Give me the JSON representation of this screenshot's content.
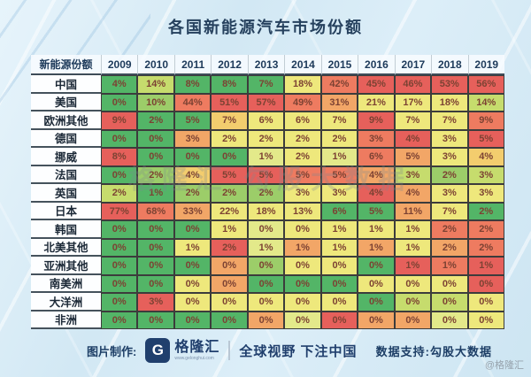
{
  "title": "各国新能源汽车市场份额",
  "watermark": "格隆汇 勾股大数据",
  "palette": {
    "g": "#53b567",
    "lg": "#9ccd69",
    "yg": "#c6dc6d",
    "ly": "#e3e98a",
    "y": "#eee87c",
    "gd": "#f3cd6e",
    "o": "#f2a667",
    "s": "#ee7b60",
    "r": "#e6605b"
  },
  "chart_data": {
    "type": "heatmap",
    "title": "各国新能源汽车市场份额",
    "header_label": "新能源份额",
    "columns": [
      "2009",
      "2010",
      "2011",
      "2012",
      "2013",
      "2014",
      "2015",
      "2016",
      "2017",
      "2018",
      "2019"
    ],
    "rows": [
      {
        "label": "中国",
        "values": [
          "4%",
          "14%",
          "8%",
          "8%",
          "7%",
          "18%",
          "42%",
          "45%",
          "46%",
          "53%",
          "56%"
        ],
        "colors": [
          "g",
          "yg",
          "g",
          "g",
          "g",
          "y",
          "s",
          "r",
          "r",
          "r",
          "r"
        ]
      },
      {
        "label": "美国",
        "values": [
          "0%",
          "10%",
          "44%",
          "51%",
          "57%",
          "49%",
          "31%",
          "21%",
          "17%",
          "18%",
          "14%"
        ],
        "colors": [
          "g",
          "lg",
          "s",
          "r",
          "r",
          "s",
          "o",
          "y",
          "y",
          "y",
          "yg"
        ]
      },
      {
        "label": "欧洲其他",
        "values": [
          "9%",
          "2%",
          "5%",
          "7%",
          "6%",
          "6%",
          "7%",
          "9%",
          "7%",
          "7%",
          "9%"
        ],
        "colors": [
          "r",
          "g",
          "g",
          "gd",
          "y",
          "y",
          "y",
          "r",
          "y",
          "y",
          "s"
        ]
      },
      {
        "label": "德国",
        "values": [
          "0%",
          "0%",
          "3%",
          "2%",
          "2%",
          "2%",
          "2%",
          "3%",
          "4%",
          "3%",
          "5%"
        ],
        "colors": [
          "g",
          "g",
          "o",
          "y",
          "y",
          "y",
          "y",
          "s",
          "r",
          "y",
          "r"
        ]
      },
      {
        "label": "挪威",
        "values": [
          "8%",
          "0%",
          "0%",
          "0%",
          "1%",
          "2%",
          "1%",
          "6%",
          "5%",
          "3%",
          "4%"
        ],
        "colors": [
          "r",
          "g",
          "g",
          "g",
          "ly",
          "y",
          "ly",
          "s",
          "o",
          "y",
          "gd"
        ]
      },
      {
        "label": "法国",
        "values": [
          "0%",
          "2%",
          "4%",
          "5%",
          "5%",
          "5%",
          "5%",
          "4%",
          "3%",
          "2%",
          "3%"
        ],
        "colors": [
          "g",
          "lg",
          "gd",
          "r",
          "r",
          "s",
          "s",
          "o",
          "yg",
          "lg",
          "yg"
        ]
      },
      {
        "label": "英国",
        "values": [
          "2%",
          "1%",
          "2%",
          "2%",
          "2%",
          "3%",
          "3%",
          "4%",
          "4%",
          "3%",
          "3%"
        ],
        "colors": [
          "yg",
          "g",
          "lg",
          "lg",
          "lg",
          "y",
          "y",
          "r",
          "o",
          "y",
          "y"
        ]
      },
      {
        "label": "日本",
        "values": [
          "77%",
          "68%",
          "33%",
          "22%",
          "18%",
          "13%",
          "6%",
          "5%",
          "11%",
          "7%",
          "2%"
        ],
        "colors": [
          "r",
          "s",
          "o",
          "y",
          "y",
          "y",
          "g",
          "g",
          "o",
          "y",
          "g"
        ]
      },
      {
        "label": "韩国",
        "values": [
          "0%",
          "0%",
          "0%",
          "1%",
          "0%",
          "0%",
          "1%",
          "1%",
          "1%",
          "2%",
          "2%"
        ],
        "colors": [
          "g",
          "g",
          "g",
          "y",
          "ly",
          "y",
          "y",
          "y",
          "y",
          "s",
          "s"
        ]
      },
      {
        "label": "北美其他",
        "values": [
          "0%",
          "0%",
          "1%",
          "2%",
          "1%",
          "1%",
          "1%",
          "1%",
          "1%",
          "2%",
          "2%"
        ],
        "colors": [
          "g",
          "g",
          "y",
          "r",
          "ly",
          "o",
          "y",
          "o",
          "y",
          "o",
          "s"
        ]
      },
      {
        "label": "亚洲其他",
        "values": [
          "0%",
          "0%",
          "0%",
          "0%",
          "0%",
          "0%",
          "0%",
          "0%",
          "1%",
          "1%",
          "1%"
        ],
        "colors": [
          "g",
          "g",
          "g",
          "o",
          "lg",
          "y",
          "y",
          "g",
          "r",
          "s",
          "r"
        ]
      },
      {
        "label": "南美洲",
        "values": [
          "0%",
          "0%",
          "0%",
          "0%",
          "0%",
          "0%",
          "0%",
          "0%",
          "0%",
          "0%",
          "0%"
        ],
        "colors": [
          "g",
          "g",
          "y",
          "o",
          "g",
          "g",
          "g",
          "y",
          "y",
          "y",
          "r"
        ]
      },
      {
        "label": "大洋洲",
        "values": [
          "0%",
          "3%",
          "0%",
          "0%",
          "0%",
          "0%",
          "0%",
          "0%",
          "0%",
          "0%",
          "0%"
        ],
        "colors": [
          "g",
          "r",
          "y",
          "y",
          "y",
          "y",
          "y",
          "g",
          "yg",
          "yg",
          "y"
        ]
      },
      {
        "label": "非洲",
        "values": [
          "0%",
          "0%",
          "0%",
          "0%",
          "0%",
          "0%",
          "0%",
          "0%",
          "0%",
          "0%",
          "0%"
        ],
        "colors": [
          "g",
          "g",
          "g",
          "g",
          "o",
          "ly",
          "r",
          "o",
          "o",
          "ly",
          "y"
        ]
      }
    ]
  },
  "footer": {
    "made_by_label": "图片制作:",
    "logo_letter": "G",
    "logo_text": "格隆汇",
    "logo_url_text": "www.gelonghui.com",
    "slogan": "全球视野 下注中国",
    "data_support": "数据支持:勾股大数据",
    "handle": "@格隆汇"
  }
}
